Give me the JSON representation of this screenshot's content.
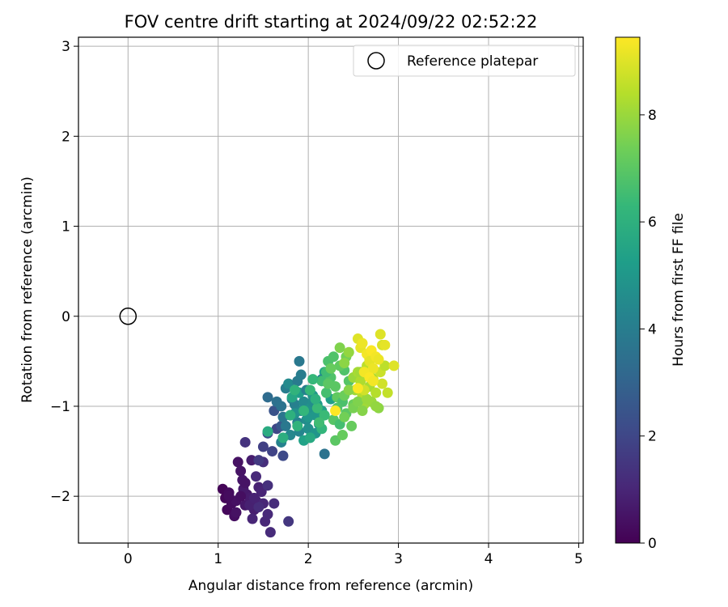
{
  "chart_data": {
    "type": "scatter",
    "title": "FOV centre drift starting at 2024/09/22 02:52:22",
    "xlabel": "Angular distance from reference (arcmin)",
    "ylabel": "Rotation from reference (arcmin)",
    "xlim": [
      -0.55,
      5.05
    ],
    "ylim": [
      -2.52,
      3.1
    ],
    "xticks": [
      0,
      1,
      2,
      3,
      4,
      5
    ],
    "yticks": [
      -2,
      -1,
      0,
      1,
      2,
      3
    ],
    "xtick_labels": [
      "0",
      "1",
      "2",
      "3",
      "4",
      "5"
    ],
    "ytick_labels": [
      "−2",
      "−1",
      "0",
      "1",
      "2",
      "3"
    ],
    "grid": true,
    "legend": {
      "position": "top-right",
      "label": "Reference platepar"
    },
    "reference_point": {
      "x": 0,
      "y": 0
    },
    "colorbar": {
      "label": "Hours from first FF file",
      "min": 0,
      "max": 9.45,
      "ticks": [
        0,
        2,
        4,
        6,
        8
      ],
      "tick_labels": [
        "0",
        "2",
        "4",
        "6",
        "8"
      ],
      "colormap": "viridis",
      "colors": [
        "#440154",
        "#482878",
        "#3e4a89",
        "#31688e",
        "#26828e",
        "#1f9e89",
        "#35b779",
        "#6ece58",
        "#b5de2b",
        "#fde725"
      ]
    },
    "series": [
      {
        "x": [
          1.05,
          1.08,
          1.1,
          1.12,
          1.15,
          1.18,
          1.2,
          1.22,
          1.25,
          1.27,
          1.3,
          1.32,
          1.35,
          1.37,
          1.4,
          1.42,
          1.45,
          1.48,
          1.5,
          1.52,
          1.55,
          1.58,
          1.62,
          1.12,
          1.2,
          1.28,
          1.35,
          1.42,
          1.5,
          1.38,
          1.45,
          1.3,
          1.25,
          1.55,
          1.4
        ],
        "y": [
          -1.92,
          -2.02,
          -2.15,
          -1.96,
          -2.08,
          -2.22,
          -2.05,
          -1.62,
          -1.72,
          -1.82,
          -2.1,
          -1.98,
          -2.02,
          -1.6,
          -2.15,
          -2.05,
          -1.9,
          -1.95,
          -2.08,
          -2.28,
          -2.2,
          -2.4,
          -2.08,
          -2.0,
          -2.18,
          -1.92,
          -2.1,
          -1.78,
          -1.62,
          -2.25,
          -2.12,
          -1.85,
          -2.0,
          -1.88,
          -2.02
        ],
        "hours": [
          0.1,
          0.15,
          0.2,
          0.25,
          0.3,
          0.35,
          0.4,
          0.45,
          0.5,
          0.55,
          0.6,
          0.65,
          0.7,
          0.75,
          0.8,
          0.85,
          0.9,
          0.95,
          1.0,
          1.05,
          1.1,
          1.15,
          1.2,
          0.3,
          0.45,
          0.65,
          0.85,
          1.1,
          1.25,
          1.0,
          1.2,
          0.5,
          0.35,
          1.3,
          0.9
        ]
      },
      {
        "x": [
          1.3,
          1.45,
          1.5,
          1.6,
          1.65,
          1.72,
          1.78,
          1.55,
          1.62,
          1.7
        ],
        "y": [
          -1.4,
          -1.6,
          -1.45,
          -1.5,
          -1.25,
          -1.55,
          -2.28,
          -1.3,
          -1.05,
          -1.22
        ],
        "hours": [
          1.4,
          1.6,
          1.8,
          1.9,
          2.0,
          2.1,
          1.5,
          2.2,
          2.4,
          2.6
        ]
      },
      {
        "x": [
          1.55,
          1.65,
          1.7,
          1.72,
          1.75,
          1.8,
          1.82,
          1.85,
          1.88,
          1.9,
          1.92,
          1.95,
          1.98,
          2.0,
          2.02,
          2.05,
          2.08,
          2.1,
          2.12,
          2.15,
          2.18,
          1.75,
          1.8,
          1.85,
          1.9,
          1.95,
          2.0,
          2.05,
          1.7,
          1.78,
          1.88,
          1.98,
          2.08,
          2.18,
          2.25,
          1.9,
          2.15,
          1.92,
          1.82,
          2.02
        ],
        "y": [
          -0.9,
          -0.95,
          -1.0,
          -1.12,
          -1.22,
          -1.1,
          -0.92,
          -0.98,
          -1.18,
          -1.28,
          -1.05,
          -0.95,
          -1.15,
          -1.25,
          -1.02,
          -0.88,
          -1.1,
          -0.98,
          -1.2,
          -1.05,
          -1.53,
          -0.8,
          -1.32,
          -1.08,
          -0.85,
          -1.38,
          -1.12,
          -0.95,
          -1.4,
          -0.75,
          -0.72,
          -0.82,
          -1.3,
          -0.62,
          -0.92,
          -0.5,
          -0.7,
          -0.65,
          -0.9,
          -1.35
        ],
        "hours": [
          3.3,
          3.5,
          3.6,
          3.7,
          3.8,
          3.9,
          4.0,
          4.1,
          4.2,
          4.3,
          4.4,
          4.5,
          4.6,
          4.7,
          4.8,
          4.9,
          5.0,
          5.1,
          5.2,
          5.3,
          3.6,
          4.0,
          4.4,
          4.8,
          5.2,
          5.4,
          5.0,
          4.6,
          4.2,
          4.5,
          3.9,
          4.1,
          4.9,
          5.5,
          5.3,
          3.8,
          4.3,
          4.0,
          5.6,
          5.7
        ]
      },
      {
        "x": [
          1.55,
          1.72,
          1.8,
          1.88,
          1.95,
          2.02,
          2.1,
          2.15,
          2.2,
          2.22,
          2.25,
          2.28,
          2.3,
          2.32,
          2.35,
          2.38,
          2.4,
          2.42,
          2.45,
          2.48,
          2.5,
          2.3,
          2.38,
          2.45,
          2.2,
          2.28,
          2.35,
          2.4,
          2.15,
          2.22,
          2.08,
          2.18,
          2.25,
          1.85,
          2.05,
          2.12,
          2.32,
          2.42
        ],
        "y": [
          -1.28,
          -1.35,
          -1.1,
          -1.22,
          -1.05,
          -0.82,
          -1.02,
          -0.72,
          -0.85,
          -0.5,
          -0.68,
          -1.15,
          -0.78,
          -0.9,
          -1.2,
          -0.95,
          -0.6,
          -1.08,
          -0.72,
          -1.22,
          -0.98,
          -1.38,
          -1.32,
          -0.82,
          -0.62,
          -0.45,
          -0.55,
          -0.88,
          -1.25,
          -0.75,
          -0.92,
          -1.1,
          -0.58,
          -0.82,
          -0.7,
          -1.18,
          -1.02,
          -0.45
        ],
        "hours": [
          5.8,
          5.9,
          6.0,
          6.1,
          6.2,
          6.3,
          6.4,
          6.5,
          6.6,
          6.7,
          6.8,
          6.9,
          7.0,
          7.1,
          6.6,
          6.7,
          6.8,
          7.0,
          6.9,
          7.2,
          7.3,
          7.0,
          7.2,
          7.4,
          6.5,
          6.8,
          7.1,
          7.3,
          6.2,
          7.0,
          6.0,
          6.4,
          7.2,
          6.1,
          6.3,
          6.5,
          6.8,
          7.4
        ]
      },
      {
        "x": [
          2.35,
          2.4,
          2.45,
          2.5,
          2.52,
          2.55,
          2.58,
          2.6,
          2.62,
          2.65,
          2.68,
          2.7,
          2.72,
          2.75,
          2.78,
          2.8,
          2.82,
          2.85,
          2.88,
          2.5,
          2.55,
          2.6,
          2.65,
          2.7,
          2.62,
          2.68,
          2.4,
          2.45,
          2.58,
          2.75
        ],
        "y": [
          -0.35,
          -0.52,
          -0.4,
          -0.68,
          -0.82,
          -0.62,
          -0.72,
          -0.88,
          -0.98,
          -0.55,
          -0.78,
          -0.95,
          -0.7,
          -0.85,
          -1.02,
          -0.62,
          -0.75,
          -0.55,
          -0.85,
          -1.02,
          -0.95,
          -1.05,
          -0.92,
          -0.68,
          -0.82,
          -0.48,
          -1.12,
          -0.82,
          -0.62,
          -1.0
        ],
        "hours": [
          7.6,
          7.8,
          7.9,
          8.0,
          8.1,
          8.2,
          8.3,
          8.4,
          8.1,
          8.5,
          8.2,
          8.0,
          8.6,
          8.4,
          7.8,
          8.7,
          8.8,
          8.5,
          8.6,
          7.5,
          7.6,
          7.7,
          8.0,
          8.3,
          8.8,
          8.9,
          7.4,
          7.7,
          8.1,
          7.9
        ]
      },
      {
        "x": [
          2.55,
          2.58,
          2.6,
          2.65,
          2.68,
          2.7,
          2.72,
          2.75,
          2.8,
          2.82,
          2.85,
          2.95,
          2.62,
          2.68,
          2.78,
          2.55,
          2.3,
          2.72
        ],
        "y": [
          -0.25,
          -0.35,
          -0.3,
          -0.42,
          -0.5,
          -0.38,
          -0.58,
          -0.45,
          -0.2,
          -0.32,
          -0.32,
          -0.55,
          -0.62,
          -0.68,
          -0.48,
          -0.8,
          -1.05,
          -0.72
        ],
        "hours": [
          9.0,
          9.1,
          9.2,
          9.3,
          9.1,
          9.4,
          9.2,
          9.3,
          9.0,
          8.9,
          9.1,
          9.0,
          9.3,
          9.4,
          9.2,
          9.4,
          9.45,
          9.3
        ]
      }
    ]
  }
}
